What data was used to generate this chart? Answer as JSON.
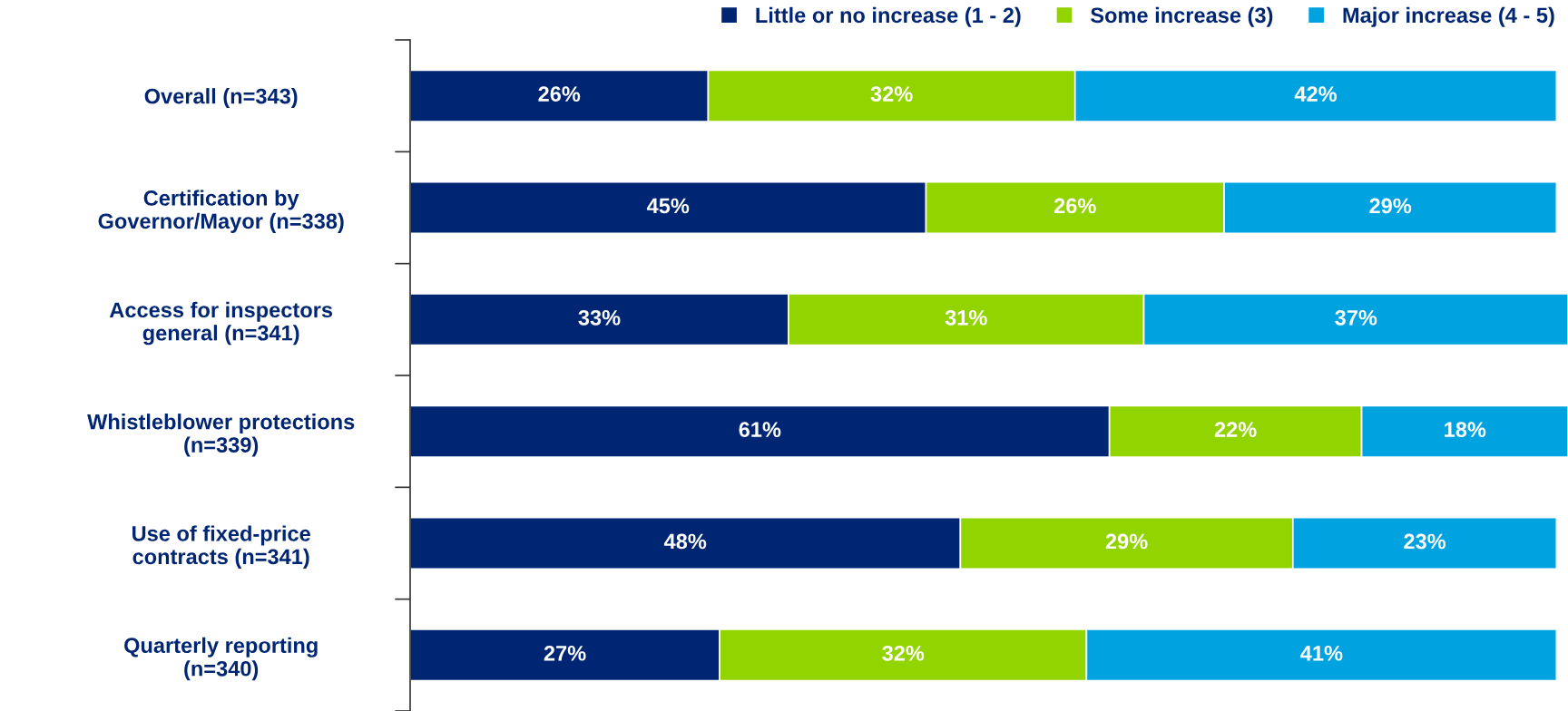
{
  "chart_data": {
    "type": "bar",
    "orientation": "horizontal",
    "stacked": true,
    "legend": "top",
    "grid": false,
    "categories": [
      "Overall (n=343)",
      "Certification by\nGovernor/Mayor (n=338)",
      "Access for inspectors\ngeneral (n=341)",
      "Whistleblower protections\n(n=339)",
      "Use of fixed-price\ncontracts (n=341)",
      "Quarterly reporting\n(n=340)"
    ],
    "series": [
      {
        "name": "Little or no increase (1 - 2)",
        "color": "#002673",
        "values": [
          26,
          45,
          33,
          61,
          48,
          27
        ],
        "value_labels": [
          "26%",
          "45%",
          "33%",
          "61%",
          "48%",
          "27%"
        ]
      },
      {
        "name": "Some increase (3)",
        "color": "#92d400",
        "values": [
          32,
          26,
          31,
          22,
          29,
          32
        ],
        "value_labels": [
          "32%",
          "26%",
          "31%",
          "22%",
          "29%",
          "32%"
        ]
      },
      {
        "name": "Major increase (4 - 5)",
        "color": "#00a3e0",
        "values": [
          42,
          29,
          37,
          18,
          23,
          41
        ],
        "value_labels": [
          "42%",
          "29%",
          "37%",
          "18%",
          "23%",
          "41%"
        ]
      }
    ]
  }
}
